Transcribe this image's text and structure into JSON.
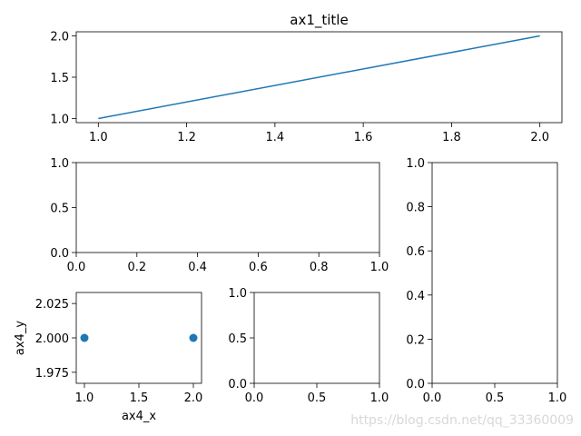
{
  "chart_data": [
    {
      "type": "line",
      "title": "ax1_title",
      "series": [
        {
          "name": "line",
          "color": "#1f77b4",
          "x": [
            1,
            2
          ],
          "values": [
            1,
            2
          ]
        }
      ],
      "xlim": [
        0.95,
        2.05
      ],
      "ylim": [
        0.95,
        2.05
      ],
      "xticks": [
        {
          "value": 1,
          "label": "1.0"
        },
        1.2,
        1.4,
        1.6,
        1.8,
        {
          "value": 2,
          "label": "2.0"
        }
      ],
      "yticks": [
        {
          "value": 1,
          "label": "1.0"
        },
        1.5,
        {
          "value": 2,
          "label": "2.0"
        }
      ]
    },
    {
      "type": "blank",
      "xlim": [
        0,
        1
      ],
      "ylim": [
        0,
        1
      ],
      "xticks": [
        {
          "value": 0,
          "label": "0.0"
        },
        0.2,
        0.4,
        0.6,
        0.8,
        {
          "value": 1,
          "label": "1.0"
        }
      ],
      "yticks": [
        {
          "value": 0,
          "label": "0.0"
        },
        0.5,
        {
          "value": 1,
          "label": "1.0"
        }
      ]
    },
    {
      "type": "blank",
      "xlim": [
        0,
        1
      ],
      "ylim": [
        0,
        1
      ],
      "xticks": [
        {
          "value": 0,
          "label": "0.0"
        },
        0.5,
        {
          "value": 1,
          "label": "1.0"
        }
      ],
      "yticks": [
        {
          "value": 0,
          "label": "0.0"
        },
        0.2,
        0.4,
        0.6,
        0.8,
        {
          "value": 1,
          "label": "1.0"
        }
      ]
    },
    {
      "type": "scatter",
      "xlabel": "ax4_x",
      "ylabel": "ax4_y",
      "series": [
        {
          "name": "points",
          "color": "#1f77b4",
          "x": [
            1,
            2
          ],
          "values": [
            2,
            2
          ]
        }
      ],
      "xlim": [
        0.925,
        2.075
      ],
      "ylim": [
        1.967,
        2.033
      ],
      "xticks": [
        {
          "value": 1,
          "label": "1.0"
        },
        1.5,
        {
          "value": 2,
          "label": "2.0"
        }
      ],
      "yticks": [
        1.975,
        {
          "value": 2,
          "label": "2.000"
        },
        2.025
      ]
    },
    {
      "type": "blank",
      "xlim": [
        0,
        1
      ],
      "ylim": [
        0,
        1
      ],
      "xticks": [
        {
          "value": 0,
          "label": "0.0"
        },
        0.5,
        {
          "value": 1,
          "label": "1.0"
        }
      ],
      "yticks": [
        {
          "value": 0,
          "label": "0.0"
        },
        0.5,
        {
          "value": 1,
          "label": "1.0"
        }
      ]
    }
  ],
  "watermark": "https://blog.csdn.net/qq_33360009"
}
